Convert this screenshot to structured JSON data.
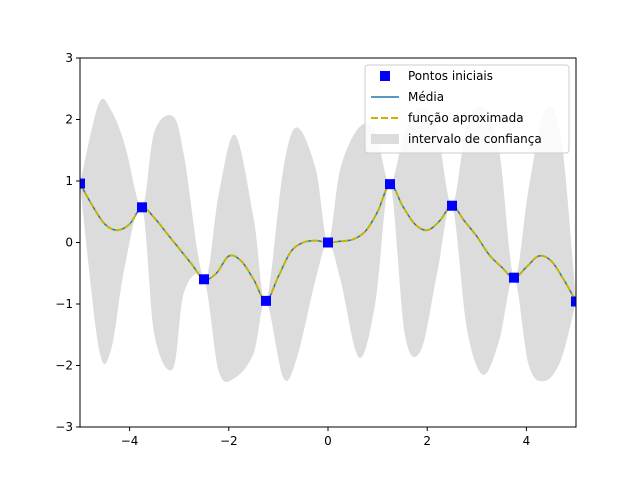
{
  "chart_data": {
    "type": "line",
    "xlim": [
      -5,
      5
    ],
    "ylim": [
      -3,
      3
    ],
    "grid": false,
    "legend_placement": "top-right",
    "x_ticks": [
      "−4",
      "−2",
      "0",
      "2",
      "4"
    ],
    "x_tick_values": [
      -4,
      -2,
      0,
      2,
      4
    ],
    "y_ticks": [
      "−3",
      "−2",
      "−1",
      "0",
      "1",
      "2",
      "3"
    ],
    "y_tick_values": [
      -3,
      -2,
      -1,
      0,
      1,
      2,
      3
    ],
    "series": [
      {
        "name": "Pontos iniciais",
        "kind": "marker-square",
        "color": "#0000ff",
        "x": [
          -5,
          -3.75,
          -2.5,
          -1.25,
          0,
          1.25,
          2.5,
          3.75,
          5
        ],
        "y": [
          0.959,
          0.572,
          -0.598,
          -0.949,
          0,
          0.949,
          0.598,
          -0.572,
          -0.959
        ]
      },
      {
        "name": "Média",
        "kind": "line",
        "color": "#1f77b4",
        "x": [
          -5,
          -4.75,
          -4.5,
          -4.25,
          -4,
          -3.75,
          -3.5,
          -3.25,
          -3,
          -2.75,
          -2.5,
          -2.25,
          -2,
          -1.75,
          -1.5,
          -1.25,
          -1,
          -0.75,
          -0.5,
          -0.25,
          0,
          0.25,
          0.5,
          0.75,
          1,
          1.25,
          1.5,
          1.75,
          2,
          2.25,
          2.5,
          2.75,
          3,
          3.25,
          3.5,
          3.75,
          4,
          4.25,
          4.5,
          4.75,
          5
        ],
        "y": [
          0.959,
          0.6,
          0.3,
          0.2,
          0.3,
          0.572,
          0.4,
          0.15,
          -0.1,
          -0.35,
          -0.598,
          -0.5,
          -0.22,
          -0.3,
          -0.6,
          -0.949,
          -0.55,
          -0.15,
          0,
          0.03,
          0,
          0.02,
          0.05,
          0.18,
          0.5,
          0.949,
          0.6,
          0.3,
          0.2,
          0.35,
          0.598,
          0.35,
          0.1,
          -0.2,
          -0.4,
          -0.572,
          -0.4,
          -0.22,
          -0.3,
          -0.6,
          -0.959
        ]
      },
      {
        "name": "função aproximada",
        "kind": "dashed-line",
        "color": "#c8b400",
        "x": [
          -5,
          -4.75,
          -4.5,
          -4.25,
          -4,
          -3.75,
          -3.5,
          -3.25,
          -3,
          -2.75,
          -2.5,
          -2.25,
          -2,
          -1.75,
          -1.5,
          -1.25,
          -1,
          -0.75,
          -0.5,
          -0.25,
          0,
          0.25,
          0.5,
          0.75,
          1,
          1.25,
          1.5,
          1.75,
          2,
          2.25,
          2.5,
          2.75,
          3,
          3.25,
          3.5,
          3.75,
          4,
          4.25,
          4.5,
          4.75,
          5
        ],
        "y": [
          0.959,
          0.6,
          0.3,
          0.2,
          0.3,
          0.572,
          0.4,
          0.15,
          -0.1,
          -0.35,
          -0.598,
          -0.5,
          -0.22,
          -0.3,
          -0.6,
          -0.949,
          -0.55,
          -0.15,
          0,
          0.03,
          0,
          0.02,
          0.05,
          0.18,
          0.5,
          0.949,
          0.6,
          0.3,
          0.2,
          0.35,
          0.598,
          0.35,
          0.1,
          -0.2,
          -0.4,
          -0.572,
          -0.4,
          -0.22,
          -0.3,
          -0.6,
          -0.959
        ]
      },
      {
        "name": "intervalo de confiança",
        "kind": "band",
        "color": "#dcdcdc",
        "x": [
          -5,
          -4.625,
          -4.375,
          -4.1,
          -3.75,
          -3.5,
          -3.125,
          -2.9,
          -2.5,
          -2.2,
          -1.875,
          -1.5,
          -1.25,
          -0.9,
          -0.625,
          -0.25,
          0,
          0.25,
          0.625,
          0.95,
          1.25,
          1.55,
          1.875,
          2.2,
          2.5,
          2.8,
          3.125,
          3.45,
          3.75,
          4.05,
          4.375,
          4.7,
          5
        ],
        "upper": [
          0.959,
          2.25,
          2.15,
          1.6,
          0.572,
          1.8,
          2.05,
          1.4,
          -0.598,
          0.8,
          1.75,
          0.4,
          -0.949,
          1.2,
          1.87,
          1.2,
          0,
          1.2,
          1.87,
          1.8,
          0.949,
          1.8,
          2.2,
          1.8,
          0.598,
          1.9,
          2.2,
          1.5,
          -0.572,
          0.9,
          2.15,
          1.7,
          -0.959
        ],
        "lower": [
          0.959,
          -1.7,
          -1.75,
          -0.4,
          0.572,
          -1.5,
          -2.05,
          -0.8,
          -0.598,
          -2.1,
          -2.2,
          -1.8,
          -0.949,
          -2.2,
          -1.87,
          -0.6,
          0,
          -0.6,
          -1.87,
          -1.0,
          0.949,
          -1.5,
          -1.75,
          -0.5,
          0.598,
          -1.4,
          -2.15,
          -1.6,
          -0.572,
          -2.0,
          -2.25,
          -1.9,
          -0.959
        ]
      }
    ]
  }
}
